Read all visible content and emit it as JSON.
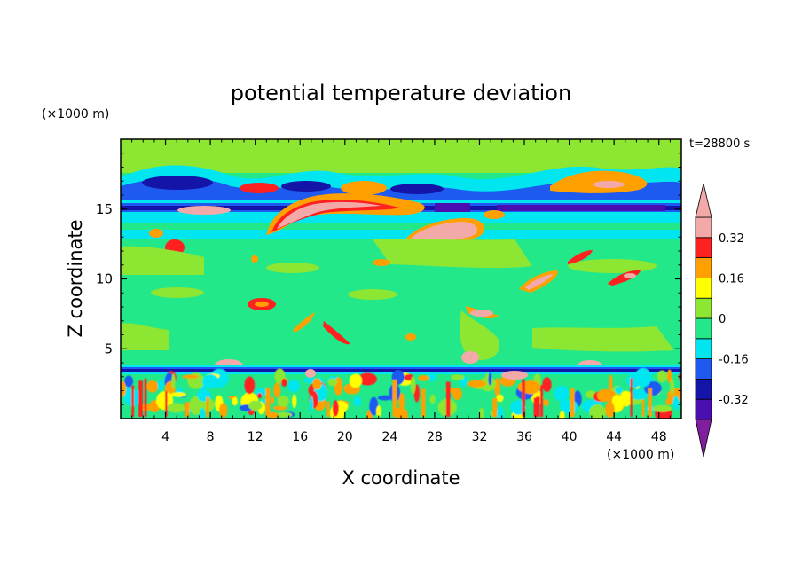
{
  "chart_data": {
    "type": "heatmap",
    "title": "potential temperature deviation",
    "xlabel": "X coordinate",
    "ylabel": "Z coordinate",
    "x_unit": "(×1000 m)",
    "y_unit": "(×1000 m)",
    "time_label": "t=28800 s",
    "xlim": [
      0,
      50
    ],
    "ylim": [
      0,
      20
    ],
    "x_ticks": [
      4,
      8,
      12,
      16,
      20,
      24,
      28,
      32,
      36,
      40,
      44,
      48
    ],
    "y_ticks": [
      5,
      10,
      15
    ],
    "colorbar": {
      "levels": [
        -0.4,
        -0.32,
        -0.24,
        -0.16,
        -0.08,
        0,
        0.08,
        0.16,
        0.24,
        0.32,
        0.4
      ],
      "tick_labels": [
        "0.32",
        "0.16",
        "0",
        "-0.16",
        "-0.32"
      ],
      "tick_values": [
        0.32,
        0.16,
        0,
        -0.16,
        -0.32
      ],
      "colors": [
        "#7f1fa0",
        "#4a0fb0",
        "#1414a8",
        "#1e5af0",
        "#00e6f0",
        "#22e88a",
        "#8ce632",
        "#ffff00",
        "#ffa000",
        "#ff2020",
        "#f4a9a9",
        "#f4a9a9"
      ],
      "extend": "both"
    },
    "features": [
      {
        "x": [
          0,
          50
        ],
        "z": [
          15.2,
          15.6
        ],
        "value": -0.3
      },
      {
        "x": [
          0,
          50
        ],
        "z": [
          3.2,
          3.6
        ],
        "value": -0.35
      },
      {
        "x": [
          15,
          25
        ],
        "z": [
          14,
          16
        ],
        "value": 0.4
      },
      {
        "x": [
          26,
          32
        ],
        "z": [
          12.8,
          14
        ],
        "value": 0.4
      },
      {
        "x": [
          37,
          40
        ],
        "z": [
          9,
          10.5
        ],
        "value": 0.3
      },
      {
        "x": [
          43,
          47
        ],
        "z": [
          10,
          11
        ],
        "value": 0.3
      }
    ]
  }
}
